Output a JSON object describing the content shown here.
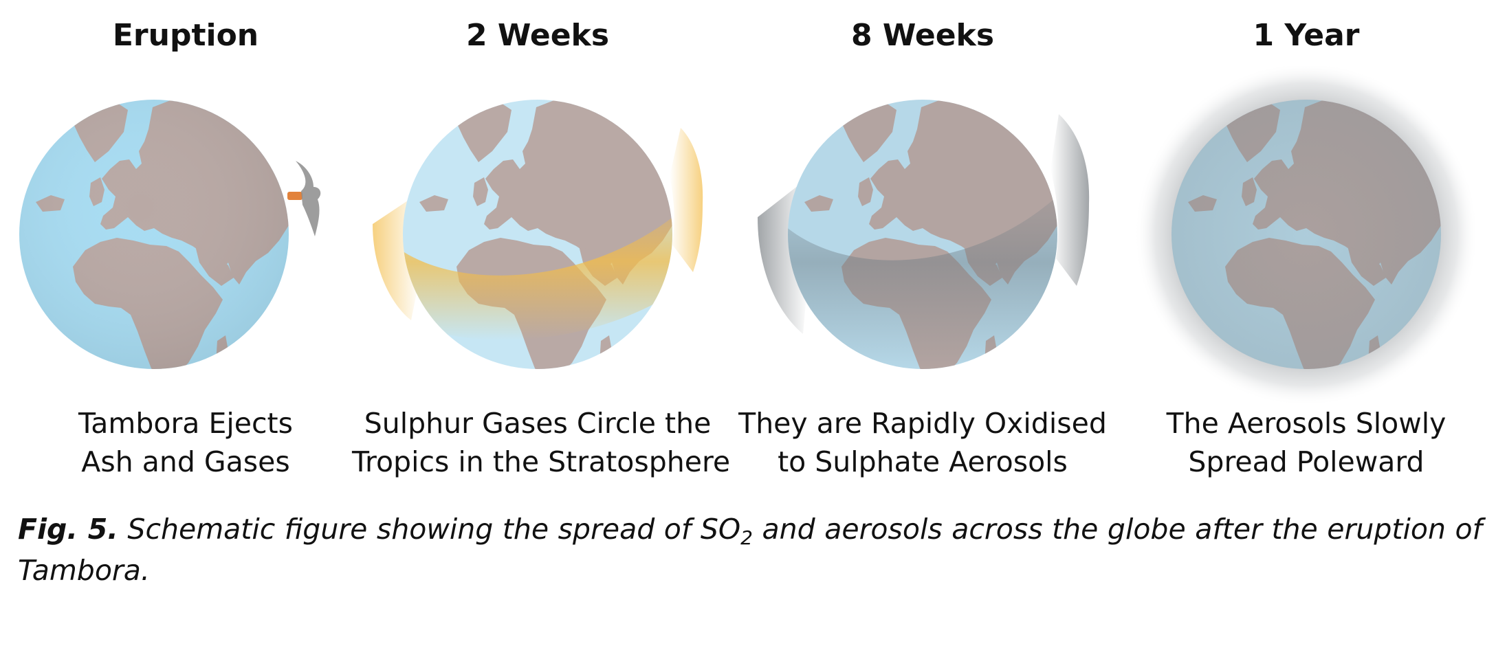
{
  "panels": [
    {
      "title": "Eruption",
      "caption_line1": "Tambora Ejects",
      "caption_line2": "Ash and Gases"
    },
    {
      "title": "2 Weeks",
      "caption_line1": "Sulphur Gases Circle the",
      "caption_line2": "Tropics in the Stratosphere"
    },
    {
      "title": "8 Weeks",
      "caption_line1": "They are Rapidly Oxidised",
      "caption_line2": "to Sulphate Aerosols"
    },
    {
      "title": "1 Year",
      "caption_line1": "The Aerosols Slowly",
      "caption_line2": "Spread Poleward"
    }
  ],
  "figure_caption": {
    "label": "Fig. 5.",
    "text_before_sub": " Schematic figure showing the spread of SO",
    "subscript": "2",
    "text_after_sub": " and aerosols across the globe after the eruption of Tambora."
  },
  "colors": {
    "ocean": "#a8dcf2",
    "land": "#b9a9a5",
    "so2_band": "#f3bd4a",
    "aerosol": "#8a8f93",
    "plume": "#8c8c8c",
    "vent": "#e2823b"
  }
}
